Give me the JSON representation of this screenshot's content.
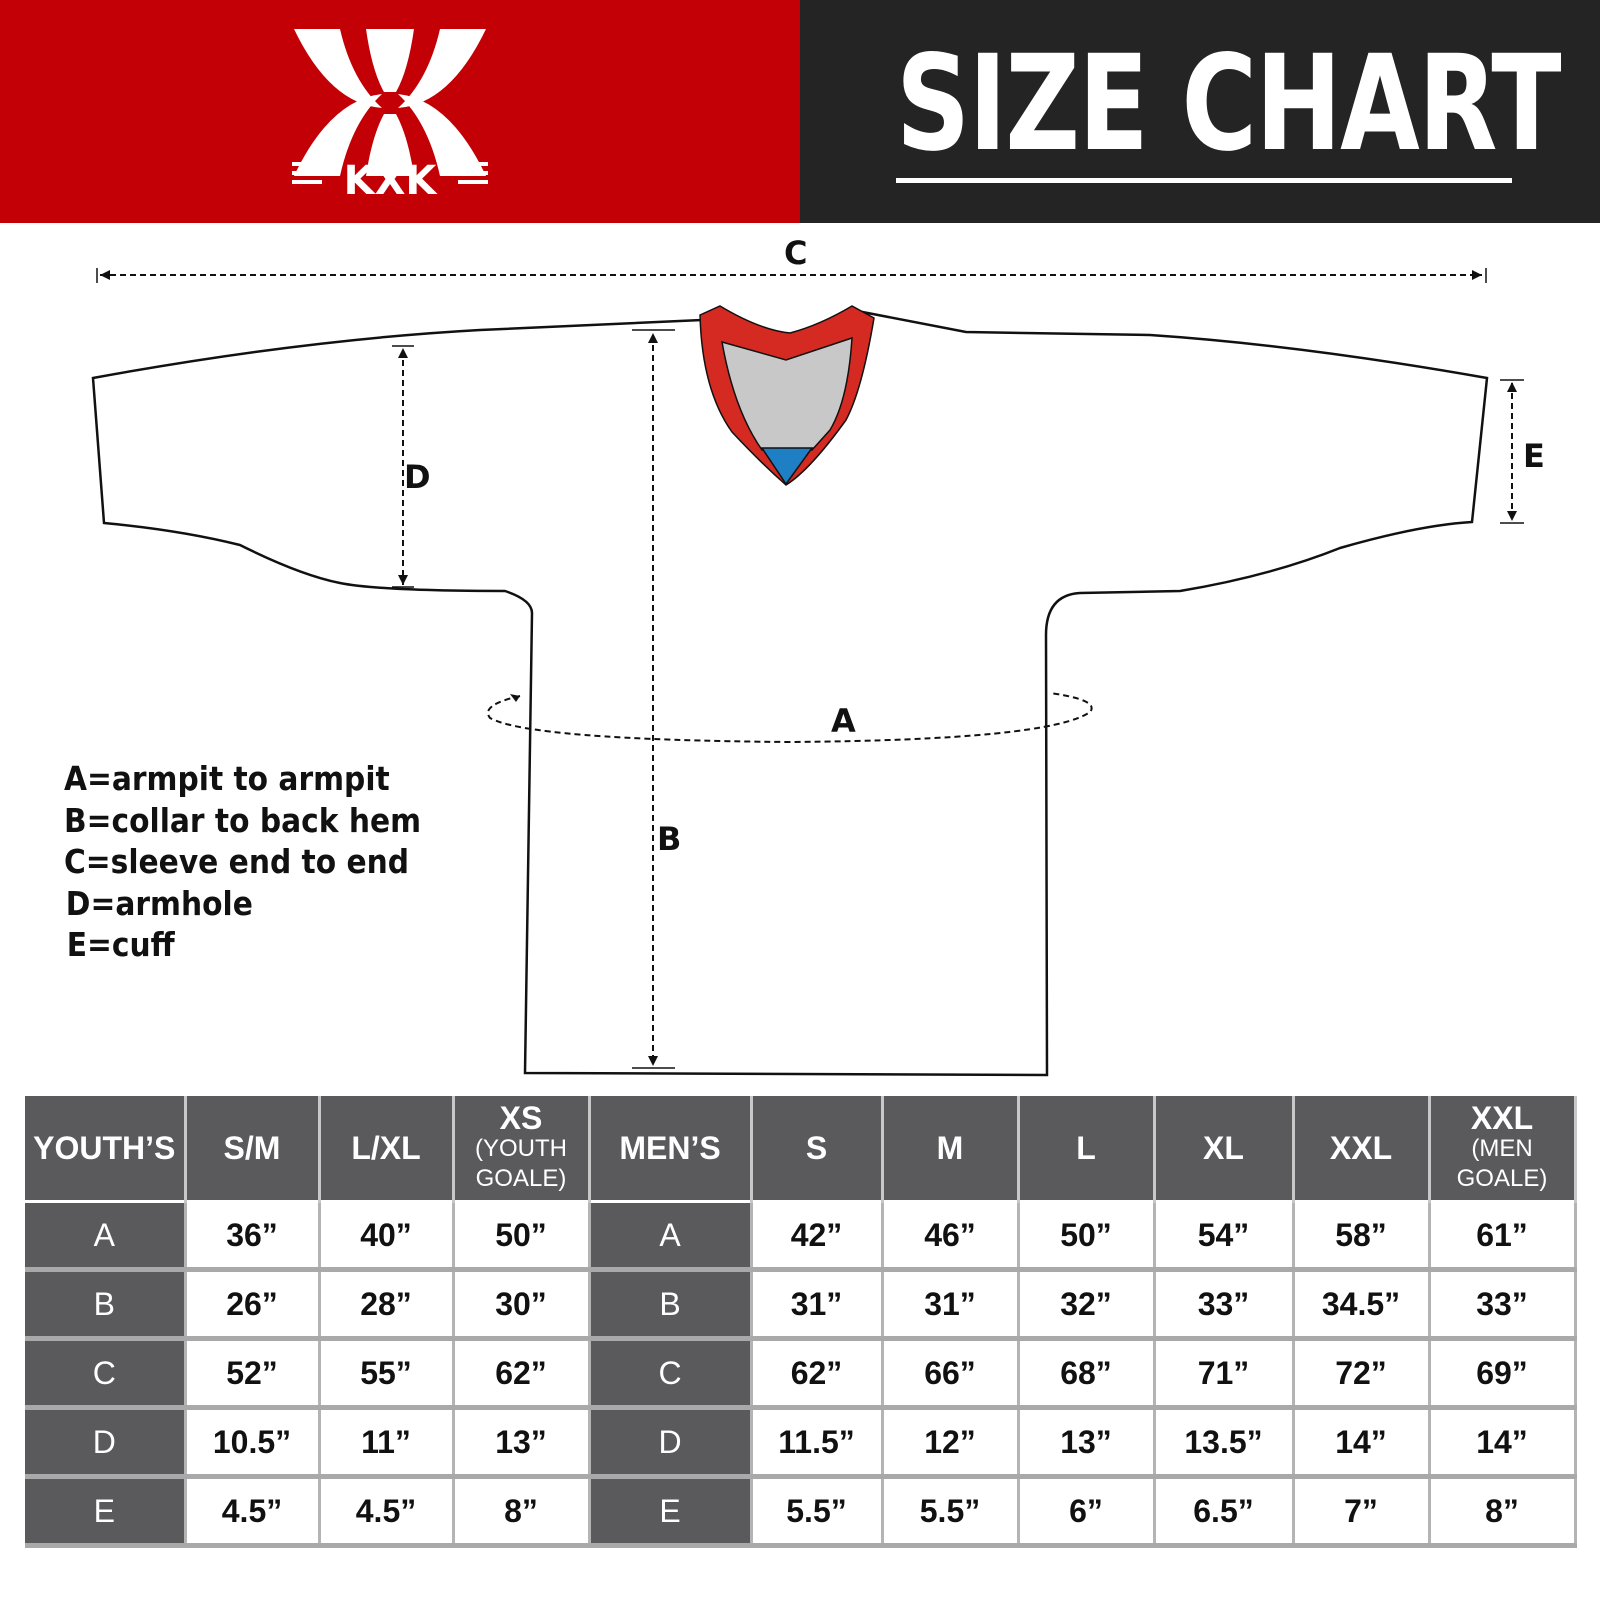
{
  "brand": {
    "logo_text": "KXK",
    "header_bg_left": "#c30005",
    "header_bg_right": "#242424"
  },
  "title": "SIZE CHART",
  "diagram": {
    "labels": {
      "A": "A",
      "B": "B",
      "C": "C",
      "D": "D",
      "E": "E"
    },
    "collar_colors": {
      "trim": "#d42a22",
      "inner": "#c8c8c8",
      "tip": "#1f7fc4"
    }
  },
  "legend": [
    "A=armpit to armpit",
    "B=collar to back hem",
    "C=sleeve end to end",
    "D=armhole",
    "E=cuff"
  ],
  "table": {
    "headers": [
      {
        "main": "YOUTH’S",
        "sub": ""
      },
      {
        "main": "S/M",
        "sub": ""
      },
      {
        "main": "L/XL",
        "sub": ""
      },
      {
        "main": "XS",
        "sub": "(YOUTH GOALE)"
      },
      {
        "main": "MEN’S",
        "sub": ""
      },
      {
        "main": "S",
        "sub": ""
      },
      {
        "main": "M",
        "sub": ""
      },
      {
        "main": "L",
        "sub": ""
      },
      {
        "main": "XL",
        "sub": ""
      },
      {
        "main": "XXL",
        "sub": ""
      },
      {
        "main": "XXL",
        "sub": "(MEN GOALE)"
      }
    ],
    "rows": [
      {
        "label": "A",
        "youth": [
          "36”",
          "40”",
          "50”"
        ],
        "men_label": "A",
        "men": [
          "42”",
          "46”",
          "50”",
          "54”",
          "58”",
          "61”"
        ]
      },
      {
        "label": "B",
        "youth": [
          "26”",
          "28”",
          "30”"
        ],
        "men_label": "B",
        "men": [
          "31”",
          "31”",
          "32”",
          "33”",
          "34.5”",
          "33”"
        ]
      },
      {
        "label": "C",
        "youth": [
          "52”",
          "55”",
          "62”"
        ],
        "men_label": "C",
        "men": [
          "62”",
          "66”",
          "68”",
          "71”",
          "72”",
          "69”"
        ]
      },
      {
        "label": "D",
        "youth": [
          "10.5”",
          "11”",
          "13”"
        ],
        "men_label": "D",
        "men": [
          "11.5”",
          "12”",
          "13”",
          "13.5”",
          "14”",
          "14”"
        ]
      },
      {
        "label": "E",
        "youth": [
          "4.5”",
          "4.5”",
          "8”"
        ],
        "men_label": "E",
        "men": [
          "5.5”",
          "5.5”",
          "6”",
          "6.5”",
          "7”",
          "8”"
        ]
      }
    ]
  }
}
